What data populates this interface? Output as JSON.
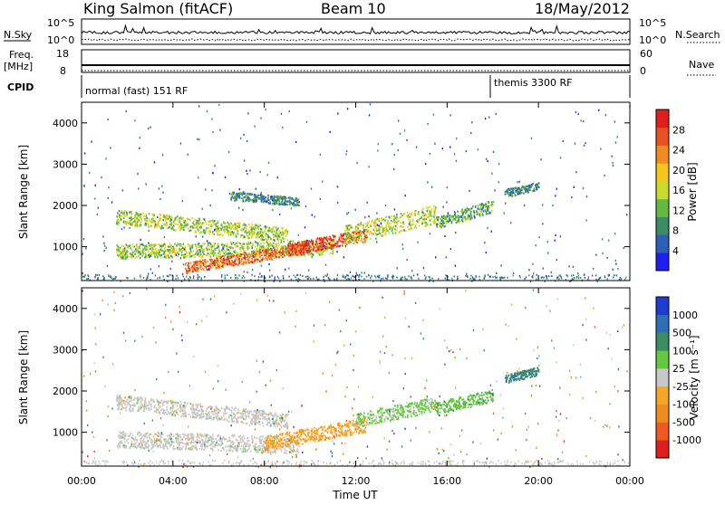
{
  "header": {
    "station": "King Salmon (fitACF)",
    "beam": "Beam 10",
    "date": "18/May/2012"
  },
  "strip_panels": {
    "nsky": {
      "label": "N.Sky",
      "ticks": [
        "10^5",
        "10^0"
      ]
    },
    "nsearch": {
      "label": "N.Search",
      "ticks": [
        "10^5",
        "10^0"
      ]
    },
    "freq": {
      "label_line1": "Freq.",
      "label_line2": "[MHz]",
      "ticks": [
        "18",
        "8"
      ]
    },
    "nave": {
      "label": "Nave",
      "ticks": [
        "60",
        "0"
      ]
    },
    "cpid": {
      "label": "CPID",
      "modes": [
        {
          "name": "normal (fast) 151 RF",
          "start_hour": 0
        },
        {
          "name": "themis 3300 RF",
          "start_hour": 18
        }
      ]
    }
  },
  "chart_data": [
    {
      "type": "heatmap",
      "title": "",
      "xlabel": "",
      "ylabel": "Slant Range [km]",
      "xlim": [
        0,
        24
      ],
      "ylim": [
        180,
        4500
      ],
      "yticks": [
        1000,
        2000,
        3000,
        4000
      ],
      "colorbar": {
        "label": "Power [dB]",
        "ticks": [
          "4",
          "8",
          "12",
          "16",
          "20",
          "24",
          "28"
        ],
        "range": [
          0,
          30
        ],
        "colors": [
          "#1e1ef0",
          "#2e5fb8",
          "#3c8c63",
          "#65b840",
          "#c8dc28",
          "#f5c518",
          "#f08c1e",
          "#e8501e",
          "#e01e1e"
        ]
      },
      "echo_bands": [
        {
          "t_start": 1.5,
          "t_end": 9.0,
          "range_start_km": 1750,
          "range_end_km": 1300,
          "width_km": 350,
          "value_db": 14
        },
        {
          "t_start": 6.5,
          "t_end": 9.5,
          "range_start_km": 2250,
          "range_end_km": 2100,
          "width_km": 200,
          "value_db": 8
        },
        {
          "t_start": 1.5,
          "t_end": 11.0,
          "range_start_km": 900,
          "range_end_km": 1000,
          "width_km": 350,
          "value_db": 13
        },
        {
          "t_start": 4.5,
          "t_end": 10.0,
          "range_start_km": 500,
          "range_end_km": 1000,
          "width_km": 260,
          "value_db": 24
        },
        {
          "t_start": 9.0,
          "t_end": 12.5,
          "range_start_km": 950,
          "range_end_km": 1300,
          "width_km": 300,
          "value_db": 26
        },
        {
          "t_start": 11.5,
          "t_end": 15.5,
          "range_start_km": 1300,
          "range_end_km": 1800,
          "width_km": 450,
          "value_db": 15
        },
        {
          "t_start": 15.5,
          "t_end": 18.0,
          "range_start_km": 1600,
          "range_end_km": 2000,
          "width_km": 300,
          "value_db": 10
        },
        {
          "t_start": 18.5,
          "t_end": 20.0,
          "range_start_km": 2300,
          "range_end_km": 2500,
          "width_km": 200,
          "value_db": 8
        }
      ]
    },
    {
      "type": "heatmap",
      "title": "",
      "xlabel": "Time UT",
      "ylabel": "Slant Range [km]",
      "xlim": [
        0,
        24
      ],
      "ylim": [
        180,
        4500
      ],
      "yticks": [
        1000,
        2000,
        3000,
        4000
      ],
      "xticks": [
        "00:00",
        "04:00",
        "08:00",
        "12:00",
        "16:00",
        "20:00",
        "00:00"
      ],
      "colorbar": {
        "label": "Velocity [m s⁻¹]",
        "ticks": [
          "-1000",
          "-500",
          "-100",
          "-25",
          "25",
          "100",
          "500",
          "1000"
        ],
        "range": [
          -1200,
          1200
        ],
        "colors": [
          "#e01e1e",
          "#f05a1e",
          "#f08c1e",
          "#f5a623",
          "#c8c8c8",
          "#65c840",
          "#3c8c63",
          "#2e6fb8",
          "#1e3cd0"
        ]
      },
      "echo_bands": [
        {
          "t_start": 1.5,
          "t_end": 9.0,
          "range_start_km": 1750,
          "range_end_km": 1300,
          "width_km": 350,
          "value": 0
        },
        {
          "t_start": 1.5,
          "t_end": 9.5,
          "range_start_km": 850,
          "range_end_km": 700,
          "width_km": 400,
          "value": 0
        },
        {
          "t_start": 8.0,
          "t_end": 12.5,
          "range_start_km": 750,
          "range_end_km": 1200,
          "width_km": 350,
          "value": -300
        },
        {
          "t_start": 12.0,
          "t_end": 15.5,
          "range_start_km": 1300,
          "range_end_km": 1700,
          "width_km": 350,
          "value": 200
        },
        {
          "t_start": 15.5,
          "t_end": 18.0,
          "range_start_km": 1600,
          "range_end_km": 1900,
          "width_km": 300,
          "value": 300
        },
        {
          "t_start": 18.5,
          "t_end": 20.0,
          "range_start_km": 2300,
          "range_end_km": 2500,
          "width_km": 200,
          "value": 600
        }
      ]
    }
  ]
}
